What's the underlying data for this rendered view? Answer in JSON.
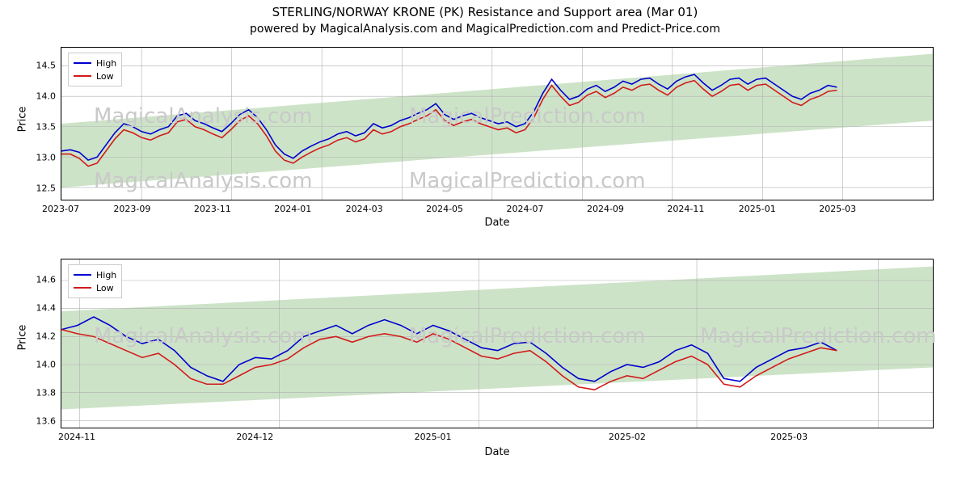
{
  "title": "STERLING/NORWAY KRONE (PK) Resistance and Support area (Mar 01)",
  "subtitle": "powered by MagicalAnalysis.com and MagicalPrediction.com and Predict-Price.com",
  "watermarks": [
    "MagicalAnalysis.com",
    "MagicalPrediction.com"
  ],
  "legend": {
    "series1": "High",
    "series2": "Low"
  },
  "colors": {
    "high": "#0000cd",
    "low": "#d11a1a",
    "support_fill": "#cde3c8",
    "grid": "#b0b0b0",
    "border": "#000000",
    "background": "#ffffff"
  },
  "panel1": {
    "ylabel": "Price",
    "xlabel": "Date",
    "ylim": [
      12.3,
      14.8
    ],
    "yticks": [
      12.5,
      13.0,
      13.5,
      14.0,
      14.5
    ],
    "xtick_labels": [
      "2023-07",
      "2023-09",
      "2023-11",
      "2024-01",
      "2024-03",
      "2024-05",
      "2024-07",
      "2024-09",
      "2024-11",
      "2025-01",
      "2025-03"
    ],
    "xtick_idx": [
      0,
      8,
      17,
      26,
      34,
      43,
      52,
      61,
      70,
      78,
      87
    ],
    "support_band": {
      "start_low": 12.5,
      "start_high": 13.55,
      "end_low": 13.6,
      "end_high": 14.7
    },
    "high": [
      13.1,
      13.12,
      13.08,
      12.95,
      13.0,
      13.2,
      13.4,
      13.55,
      13.5,
      13.42,
      13.38,
      13.45,
      13.5,
      13.68,
      13.72,
      13.6,
      13.55,
      13.48,
      13.42,
      13.55,
      13.7,
      13.78,
      13.65,
      13.45,
      13.2,
      13.05,
      12.98,
      13.1,
      13.18,
      13.25,
      13.3,
      13.38,
      13.42,
      13.35,
      13.4,
      13.55,
      13.48,
      13.52,
      13.6,
      13.65,
      13.72,
      13.78,
      13.88,
      13.7,
      13.62,
      13.68,
      13.72,
      13.65,
      13.6,
      13.55,
      13.58,
      13.5,
      13.55,
      13.75,
      14.05,
      14.28,
      14.1,
      13.95,
      14.0,
      14.12,
      14.18,
      14.08,
      14.15,
      14.25,
      14.2,
      14.28,
      14.3,
      14.2,
      14.12,
      14.25,
      14.32,
      14.36,
      14.22,
      14.1,
      14.18,
      14.28,
      14.3,
      14.2,
      14.28,
      14.3,
      14.2,
      14.1,
      14.0,
      13.95,
      14.05,
      14.1,
      14.18,
      14.15
    ],
    "low": [
      13.05,
      13.05,
      12.98,
      12.85,
      12.9,
      13.1,
      13.3,
      13.45,
      13.4,
      13.32,
      13.28,
      13.35,
      13.4,
      13.58,
      13.62,
      13.5,
      13.45,
      13.38,
      13.32,
      13.45,
      13.6,
      13.68,
      13.55,
      13.35,
      13.1,
      12.95,
      12.9,
      13.0,
      13.08,
      13.15,
      13.2,
      13.28,
      13.32,
      13.25,
      13.3,
      13.45,
      13.38,
      13.42,
      13.5,
      13.55,
      13.62,
      13.68,
      13.78,
      13.6,
      13.52,
      13.58,
      13.62,
      13.55,
      13.5,
      13.45,
      13.48,
      13.4,
      13.45,
      13.65,
      13.95,
      14.18,
      14.0,
      13.85,
      13.9,
      14.02,
      14.08,
      13.98,
      14.05,
      14.15,
      14.1,
      14.18,
      14.2,
      14.1,
      14.02,
      14.15,
      14.22,
      14.26,
      14.12,
      14.0,
      14.08,
      14.18,
      14.2,
      14.1,
      14.18,
      14.2,
      14.1,
      14.0,
      13.9,
      13.85,
      13.95,
      14.0,
      14.08,
      14.1
    ]
  },
  "panel2": {
    "ylabel": "Price",
    "xlabel": "Date",
    "ylim": [
      13.55,
      14.75
    ],
    "yticks": [
      13.6,
      13.8,
      14.0,
      14.2,
      14.4,
      14.6
    ],
    "xtick_labels": [
      "2024-11",
      "2024-12",
      "2025-01",
      "2025-02",
      "2025-03"
    ],
    "xtick_idx": [
      1,
      12,
      23,
      35,
      45
    ],
    "support_band": {
      "start_low": 13.68,
      "start_high": 14.38,
      "end_low": 13.98,
      "end_high": 14.7
    },
    "high": [
      14.25,
      14.28,
      14.34,
      14.28,
      14.2,
      14.15,
      14.18,
      14.1,
      13.98,
      13.92,
      13.88,
      14.0,
      14.05,
      14.04,
      14.1,
      14.2,
      14.24,
      14.28,
      14.22,
      14.28,
      14.32,
      14.28,
      14.22,
      14.28,
      14.24,
      14.18,
      14.12,
      14.1,
      14.15,
      14.16,
      14.08,
      13.98,
      13.9,
      13.88,
      13.95,
      14.0,
      13.98,
      14.02,
      14.1,
      14.14,
      14.08,
      13.9,
      13.88,
      13.98,
      14.04,
      14.1,
      14.12,
      14.16,
      14.1
    ],
    "low": [
      14.25,
      14.22,
      14.2,
      14.15,
      14.1,
      14.05,
      14.08,
      14.0,
      13.9,
      13.86,
      13.86,
      13.92,
      13.98,
      14.0,
      14.04,
      14.12,
      14.18,
      14.2,
      14.16,
      14.2,
      14.22,
      14.2,
      14.16,
      14.22,
      14.18,
      14.12,
      14.06,
      14.04,
      14.08,
      14.1,
      14.02,
      13.92,
      13.84,
      13.82,
      13.88,
      13.92,
      13.9,
      13.96,
      14.02,
      14.06,
      14.0,
      13.86,
      13.84,
      13.92,
      13.98,
      14.04,
      14.08,
      14.12,
      14.1
    ]
  }
}
